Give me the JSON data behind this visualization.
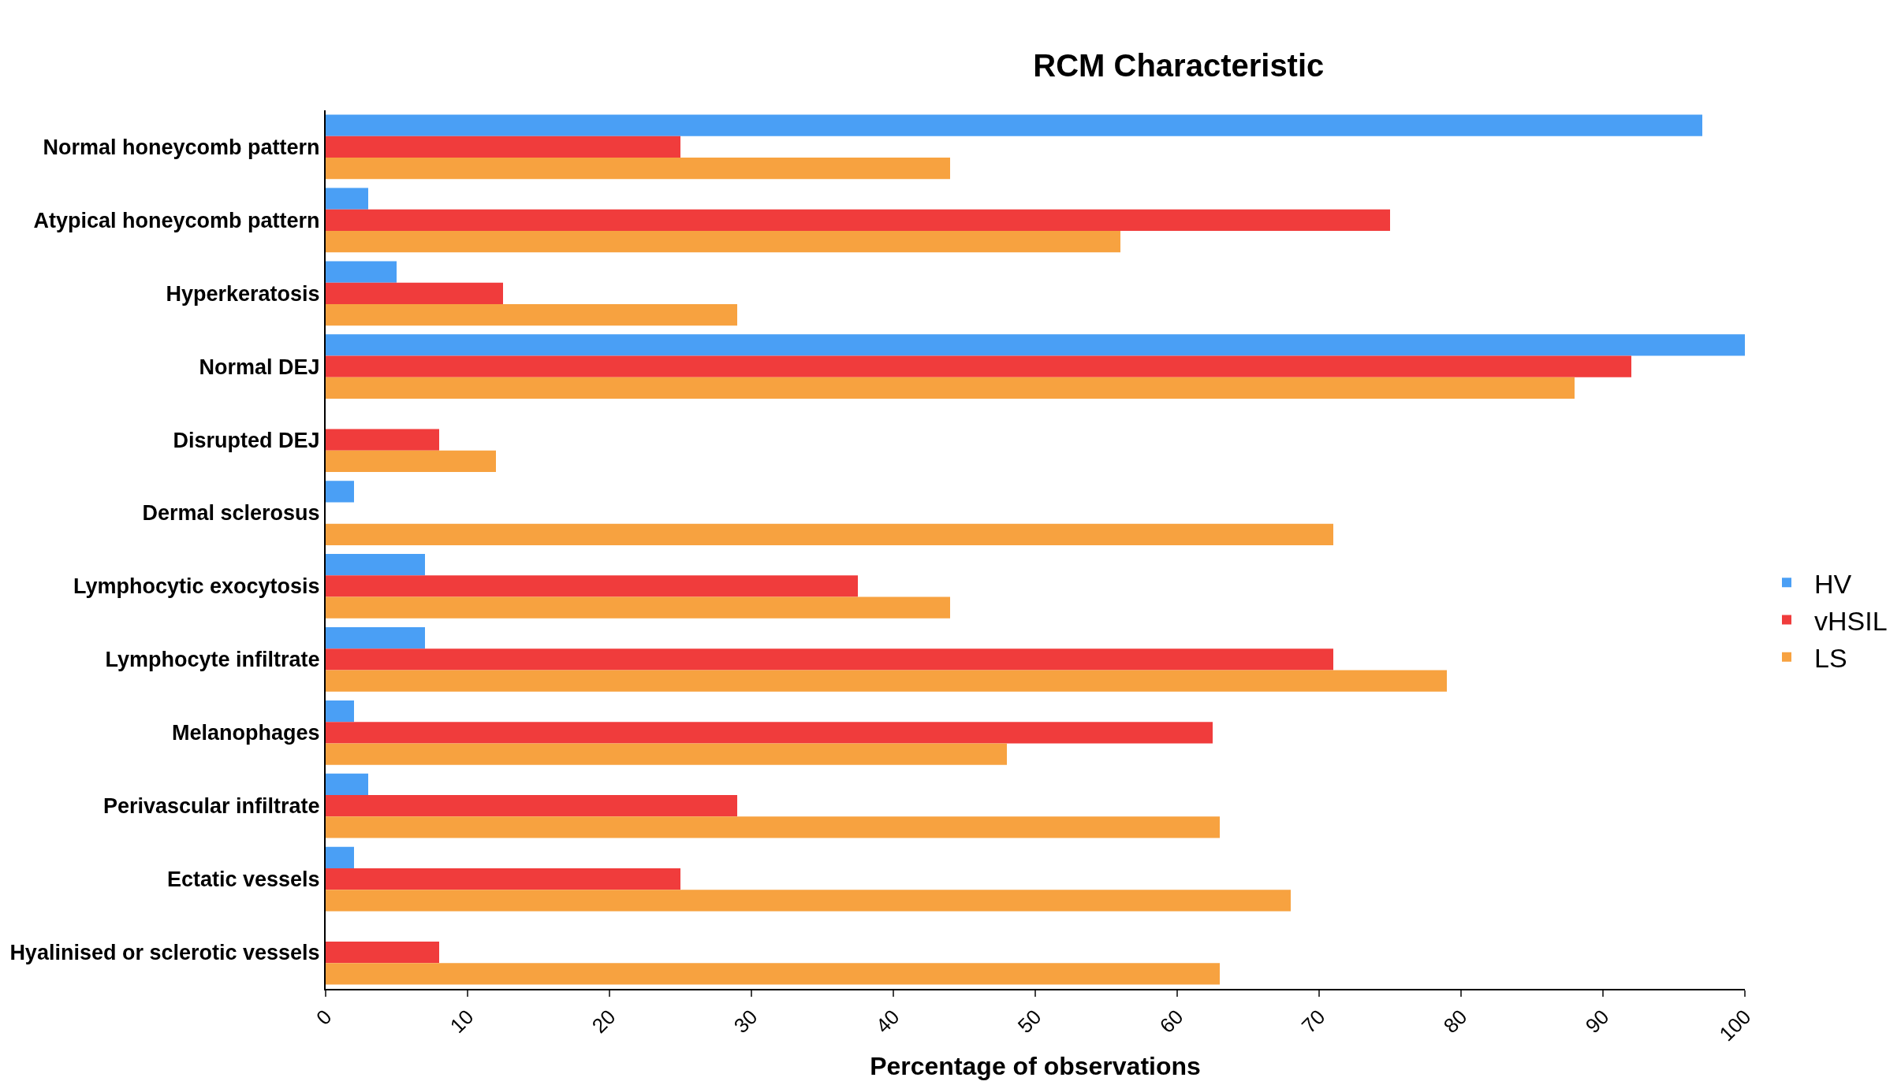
{
  "chart_data": {
    "type": "bar",
    "orientation": "horizontal",
    "title": "RCM Characteristic",
    "xlabel": "Percentage of observations",
    "categories": [
      "Normal honeycomb pattern",
      "Atypical honeycomb pattern",
      "Hyperkeratosis",
      "Normal DEJ",
      "Disrupted DEJ",
      "Dermal sclerosus",
      "Lymphocytic exocytosis",
      "Lymphocyte infiltrate",
      "Melanophages",
      "Perivascular infiltrate",
      "Ectatic vessels",
      "Hyalinised or sclerotic vessels"
    ],
    "series": [
      {
        "name": "HV",
        "color": "#4a9ff5",
        "values": [
          97,
          3,
          5,
          100,
          null,
          2,
          7,
          7,
          2,
          3,
          2,
          null
        ]
      },
      {
        "name": "vHSIL",
        "color": "#f03c3c",
        "values": [
          25,
          75,
          12.5,
          92,
          8,
          null,
          37.5,
          71,
          62.5,
          29,
          25,
          8
        ]
      },
      {
        "name": "LS",
        "color": "#f7a240",
        "values": [
          44,
          56,
          29,
          88,
          12,
          71,
          44,
          79,
          48,
          63,
          68,
          63
        ]
      }
    ],
    "xlim": [
      0,
      100
    ],
    "xticks": [
      0,
      10,
      20,
      30,
      40,
      50,
      60,
      70,
      80,
      90,
      100
    ],
    "legend": "right"
  }
}
